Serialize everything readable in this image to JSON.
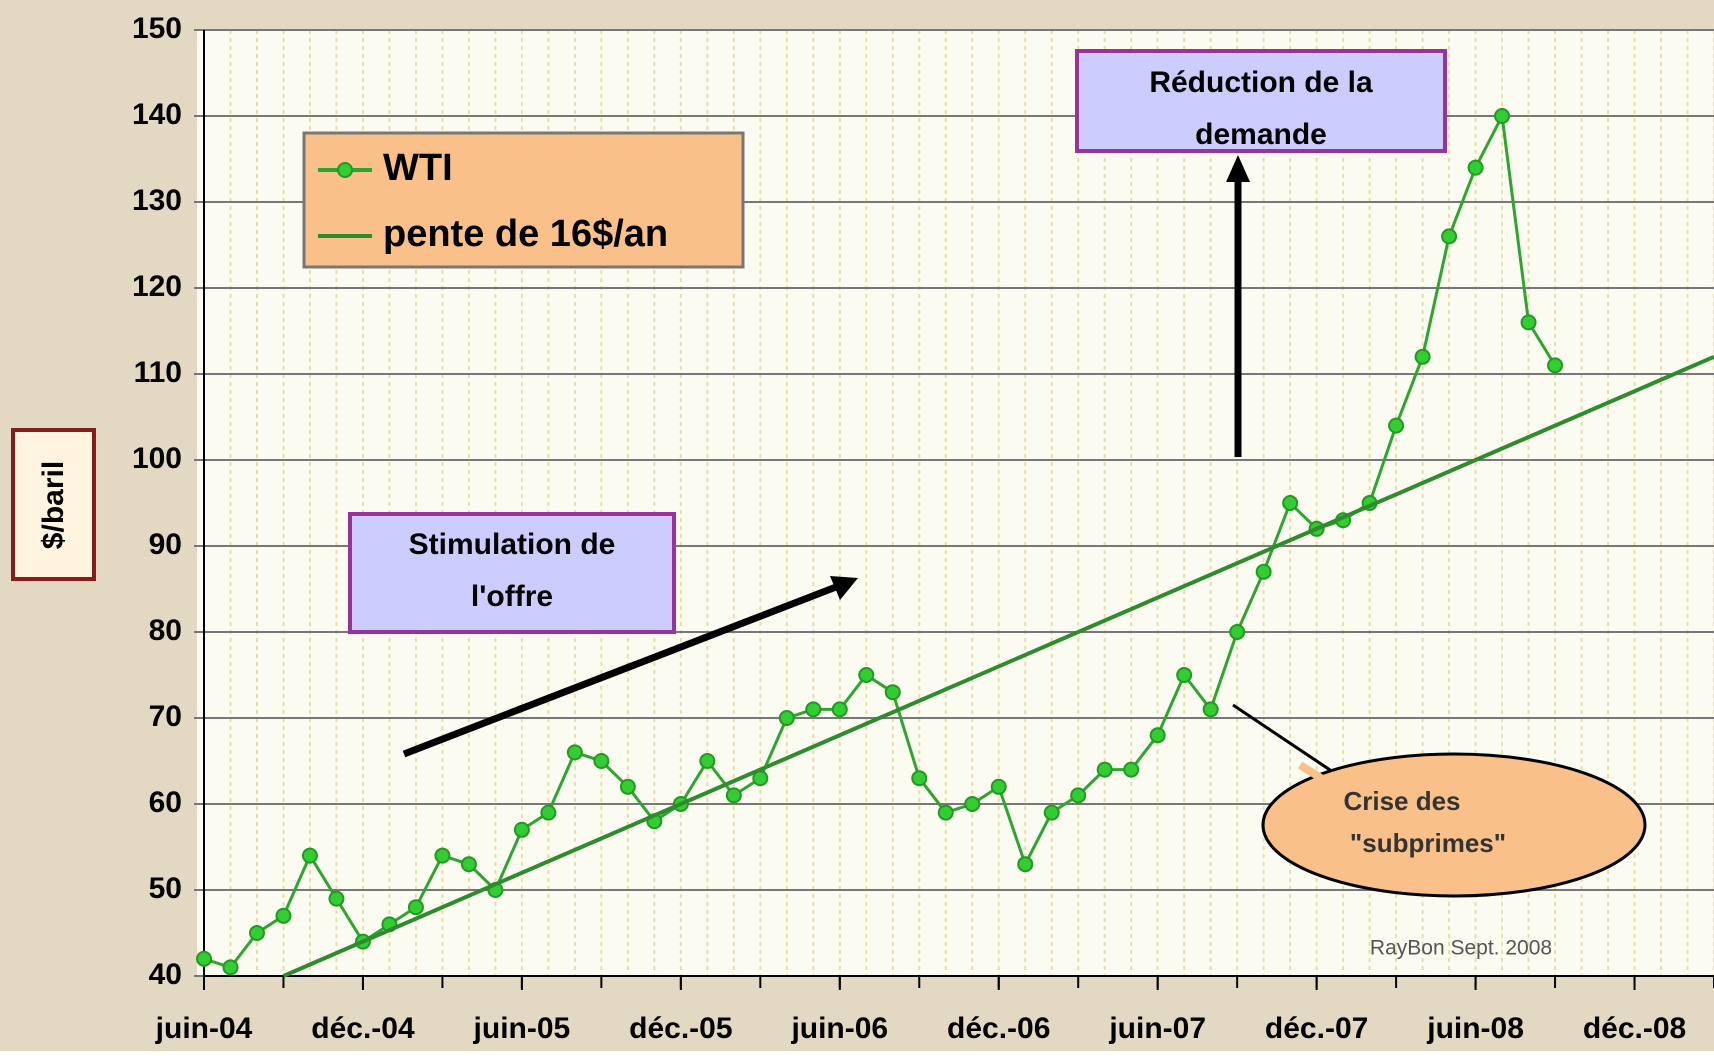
{
  "chart_data": {
    "type": "line",
    "x": [
      "2004-06",
      "2004-07",
      "2004-08",
      "2004-09",
      "2004-10",
      "2004-11",
      "2004-12",
      "2005-01",
      "2005-02",
      "2005-03",
      "2005-04",
      "2005-05",
      "2005-06",
      "2005-07",
      "2005-08",
      "2005-09",
      "2005-10",
      "2005-11",
      "2005-12",
      "2006-01",
      "2006-02",
      "2006-03",
      "2006-04",
      "2006-05",
      "2006-06",
      "2006-07",
      "2006-08",
      "2006-09",
      "2006-10",
      "2006-11",
      "2006-12",
      "2007-01",
      "2007-02",
      "2007-03",
      "2007-04",
      "2007-05",
      "2007-06",
      "2007-07",
      "2007-08",
      "2007-09",
      "2007-10",
      "2007-11",
      "2007-12",
      "2008-01",
      "2008-02",
      "2008-03",
      "2008-04",
      "2008-05",
      "2008-06",
      "2008-07",
      "2008-08",
      "2008-09"
    ],
    "series": [
      {
        "name": "WTI",
        "color": "#33cc33",
        "markers": true,
        "values": [
          42,
          41,
          45,
          47,
          54,
          49,
          44,
          46,
          48,
          54,
          53,
          50,
          57,
          59,
          66,
          65,
          62,
          58,
          60,
          65,
          61,
          63,
          70,
          71,
          71,
          75,
          73,
          63,
          59,
          60,
          62,
          53,
          59,
          61,
          64,
          64,
          68,
          75,
          71,
          80,
          87,
          95,
          92,
          93,
          95,
          104,
          112,
          126,
          134,
          140,
          116,
          111
        ]
      },
      {
        "name": "pente de 16$/an",
        "color": "#2e8b2e",
        "markers": false,
        "x": [
          "2004-09",
          "2009-03"
        ],
        "values": [
          40,
          112
        ]
      }
    ],
    "ylabel": "$/baril",
    "ylim": [
      40,
      150
    ],
    "yticks": [
      40,
      50,
      60,
      70,
      80,
      90,
      100,
      110,
      120,
      130,
      140,
      150
    ],
    "xlim": [
      "2004-06",
      "2009-03"
    ],
    "xticks": [
      {
        "value": "2004-06",
        "label": "juin-04"
      },
      {
        "value": "2004-12",
        "label": "déc.-04"
      },
      {
        "value": "2005-06",
        "label": "juin-05"
      },
      {
        "value": "2005-12",
        "label": "déc.-05"
      },
      {
        "value": "2006-06",
        "label": "juin-06"
      },
      {
        "value": "2006-12",
        "label": "déc.-06"
      },
      {
        "value": "2007-06",
        "label": "juin-07"
      },
      {
        "value": "2007-12",
        "label": "déc.-07"
      },
      {
        "value": "2008-06",
        "label": "juin-08"
      },
      {
        "value": "2008-12",
        "label": "déc.-08"
      }
    ],
    "grid": true,
    "legend": "upper left",
    "annotations": [
      [
        "Réduction de la",
        "demande"
      ],
      [
        "Stimulation de",
        "l'offre"
      ],
      [
        "Crise des",
        "\"subprimes\""
      ]
    ],
    "credit": "RayBon Sept.  2008"
  }
}
